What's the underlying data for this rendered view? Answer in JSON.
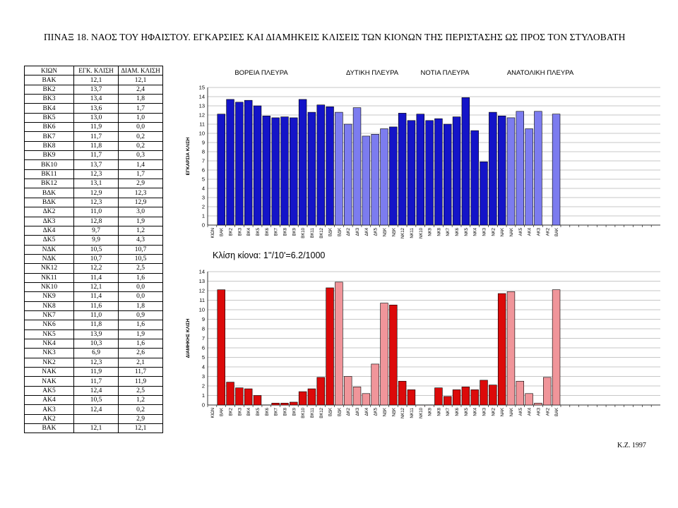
{
  "title": "ΠΙΝΑΞ 18. ΝΑΟΣ ΤΟΥ ΗΦΑΙΣΤΟΥ. ΕΓΚΑΡΣΙΕΣ ΚΑΙ ΔΙΑΜΗΚΕΙΣ ΚΛΙΣΕΙΣ ΤΩΝ ΚΙΟΝΩΝ ΤΗΣ ΠΕΡΙΣΤΑΣΗΣ ΩΣ ΠΡΟΣ ΤΟΝ ΣΤΥΛΟΒΑΤΗ",
  "credit": "K.Z. 1997",
  "table": {
    "headers": [
      "ΚΙΩΝ",
      "ΕΓΚ. ΚΛΙΣΗ",
      "ΔΙΑΜ. ΚΛΙΣΗ"
    ],
    "rows": [
      [
        "ΒΑΚ",
        "12,1",
        "12,1"
      ],
      [
        "ΒΚ2",
        "13,7",
        "2,4"
      ],
      [
        "ΒΚ3",
        "13,4",
        "1,8"
      ],
      [
        "ΒΚ4",
        "13,6",
        "1,7"
      ],
      [
        "ΒΚ5",
        "13,0",
        "1,0"
      ],
      [
        "ΒΚ6",
        "11,9",
        "0,0"
      ],
      [
        "ΒΚ7",
        "11,7",
        "0,2"
      ],
      [
        "ΒΚ8",
        "11,8",
        "0,2"
      ],
      [
        "ΒΚ9",
        "11,7",
        "0,3"
      ],
      [
        "ΒΚ10",
        "13,7",
        "1,4"
      ],
      [
        "ΒΚ11",
        "12,3",
        "1,7"
      ],
      [
        "ΒΚ12",
        "13,1",
        "2,9"
      ],
      [
        "ΒΔΚ",
        "12,9",
        "12,3"
      ],
      [
        "ΒΔΚ",
        "12,3",
        "12,9"
      ],
      [
        "ΔΚ2",
        "11,0",
        "3,0"
      ],
      [
        "ΔΚ3",
        "12,8",
        "1,9"
      ],
      [
        "ΔΚ4",
        "9,7",
        "1,2"
      ],
      [
        "ΔΚ5",
        "9,9",
        "4,3"
      ],
      [
        "ΝΔΚ",
        "10,5",
        "10,7"
      ],
      [
        "ΝΔΚ",
        "10,7",
        "10,5"
      ],
      [
        "ΝΚ12",
        "12,2",
        "2,5"
      ],
      [
        "ΝΚ11",
        "11,4",
        "1,6"
      ],
      [
        "ΝΚ10",
        "12,1",
        "0,0"
      ],
      [
        "ΝΚ9",
        "11,4",
        "0,0"
      ],
      [
        "ΝΚ8",
        "11,6",
        "1,8"
      ],
      [
        "ΝΚ7",
        "11,0",
        "0,9"
      ],
      [
        "ΝΚ6",
        "11,8",
        "1,6"
      ],
      [
        "ΝΚ5",
        "13,9",
        "1,9"
      ],
      [
        "ΝΚ4",
        "10,3",
        "1,6"
      ],
      [
        "ΝΚ3",
        "6,9",
        "2,6"
      ],
      [
        "ΝΚ2",
        "12,3",
        "2,1"
      ],
      [
        "ΝΑΚ",
        "11,9",
        "11,7"
      ],
      [
        "ΝΑΚ",
        "11,7",
        "11,9"
      ],
      [
        "ΑΚ5",
        "12,4",
        "2,5"
      ],
      [
        "ΑΚ4",
        "10,5",
        "1,2"
      ],
      [
        "ΑΚ3",
        "12,4",
        "0,2"
      ],
      [
        "ΑΚ2",
        "",
        "2,9"
      ],
      [
        "ΒΑΚ",
        "12,1",
        "12,1"
      ]
    ]
  },
  "chart_data": [
    {
      "type": "bar",
      "ylabel": "ΕΓΚΑΡΣΙΑ ΚΛΙΣΗ",
      "ylim": [
        0,
        15
      ],
      "yticks": [
        0,
        1,
        2,
        3,
        4,
        5,
        6,
        7,
        8,
        9,
        10,
        11,
        12,
        13,
        14,
        15
      ],
      "grid": true,
      "section_labels": [
        "ΒΟΡΕΙΑ ΠΛΕΥΡΑ",
        "ΔΥΤΙΚΗ ΠΛΕΥΡΑ",
        "ΝΟΤΙΑ ΠΛΕΥΡΑ",
        "ΑΝΑΤΟΛΙΚΗ ΠΛΕΥΡΑ"
      ],
      "annotation": "Κλίση κίονα: 1''/10'=6.2/1000",
      "categories": [
        "ΚΙΩΝ",
        "ΒΑΚ",
        "ΒΚ2",
        "ΒΚ3",
        "ΒΚ4",
        "ΒΚ5",
        "ΒΚ6",
        "ΒΚ7",
        "ΒΚ8",
        "ΒΚ9",
        "ΒΚ10",
        "ΒΚ11",
        "ΒΚ12",
        "ΒΔΚ",
        "ΒΔΚ",
        "ΔΚ2",
        "ΔΚ3",
        "ΔΚ4",
        "ΔΚ5",
        "ΝΔΚ",
        "ΝΔΚ",
        "ΝΚ12",
        "ΝΚ11",
        "ΝΚ10",
        "ΝΚ9",
        "ΝΚ8",
        "ΝΚ7",
        "ΝΚ6",
        "ΝΚ5",
        "ΝΚ4",
        "ΝΚ3",
        "ΝΚ2",
        "ΝΑΚ",
        "ΝΑΚ",
        "ΑΚ5",
        "ΑΚ4",
        "ΑΚ3",
        "ΑΚ2",
        "ΒΑΚ",
        "",
        "",
        "",
        "",
        "",
        "",
        "",
        "",
        "",
        "",
        ""
      ],
      "values": [
        null,
        12.1,
        13.7,
        13.4,
        13.6,
        13.0,
        11.9,
        11.7,
        11.8,
        11.7,
        13.7,
        12.3,
        13.1,
        12.9,
        12.3,
        11.0,
        12.8,
        9.7,
        9.9,
        10.5,
        10.7,
        12.2,
        11.4,
        12.1,
        11.4,
        11.6,
        11.0,
        11.8,
        13.9,
        10.3,
        6.9,
        12.3,
        11.9,
        11.7,
        12.4,
        10.5,
        12.4,
        null,
        12.1,
        null,
        null,
        null,
        null,
        null,
        null,
        null,
        null,
        null,
        null,
        null
      ],
      "shades": [
        "",
        "d",
        "d",
        "d",
        "d",
        "d",
        "d",
        "d",
        "d",
        "d",
        "d",
        "d",
        "d",
        "d",
        "l",
        "l",
        "l",
        "l",
        "l",
        "l",
        "d",
        "d",
        "d",
        "d",
        "d",
        "d",
        "d",
        "d",
        "d",
        "d",
        "d",
        "d",
        "d",
        "l",
        "l",
        "l",
        "l",
        "l",
        "l",
        "",
        "",
        "",
        "",
        "",
        "",
        "",
        "",
        "",
        "",
        ""
      ],
      "colors": {
        "dark": "#1414c8",
        "light": "#7c7cef",
        "grid": "#b4b4b4"
      }
    },
    {
      "type": "bar",
      "ylabel": "ΔΙΑΜΗΚΗΣ ΚΛΙΣΗ",
      "ylim": [
        0,
        14
      ],
      "yticks": [
        0,
        1,
        2,
        3,
        4,
        5,
        6,
        7,
        8,
        9,
        10,
        11,
        12,
        13,
        14
      ],
      "grid": true,
      "categories": [
        "ΚΙΩΝ",
        "ΒΑΚ",
        "ΒΚ2",
        "ΒΚ3",
        "ΒΚ4",
        "ΒΚ5",
        "ΒΚ6",
        "ΒΚ7",
        "ΒΚ8",
        "ΒΚ9",
        "ΒΚ10",
        "ΒΚ11",
        "ΒΚ12",
        "ΒΔΚ",
        "ΒΔΚ",
        "ΔΚ2",
        "ΔΚ3",
        "ΔΚ4",
        "ΔΚ5",
        "ΝΔΚ",
        "ΝΔΚ",
        "ΝΚ12",
        "ΝΚ11",
        "ΝΚ10",
        "ΝΚ9",
        "ΝΚ8",
        "ΝΚ7",
        "ΝΚ6",
        "ΝΚ5",
        "ΝΚ4",
        "ΝΚ3",
        "ΝΚ2",
        "ΝΑΚ",
        "ΝΑΚ",
        "ΑΚ5",
        "ΑΚ4",
        "ΑΚ3",
        "ΑΚ2",
        "ΒΑΚ",
        "",
        "",
        "",
        "",
        "",
        "",
        "",
        "",
        "",
        "",
        ""
      ],
      "values": [
        null,
        12.1,
        2.4,
        1.8,
        1.7,
        1.0,
        0.0,
        0.2,
        0.2,
        0.3,
        1.4,
        1.7,
        2.9,
        12.3,
        12.9,
        3.0,
        1.9,
        1.2,
        4.3,
        10.7,
        10.5,
        2.5,
        1.6,
        0.0,
        0.0,
        1.8,
        0.9,
        1.6,
        1.9,
        1.6,
        2.6,
        2.1,
        11.7,
        11.9,
        2.5,
        1.2,
        0.2,
        2.9,
        12.1,
        null,
        null,
        null,
        null,
        null,
        null,
        null,
        null,
        null,
        null,
        null
      ],
      "shades": [
        "",
        "d",
        "d",
        "d",
        "d",
        "d",
        "d",
        "d",
        "d",
        "d",
        "d",
        "d",
        "d",
        "d",
        "l",
        "l",
        "l",
        "l",
        "l",
        "l",
        "d",
        "d",
        "d",
        "d",
        "d",
        "d",
        "d",
        "d",
        "d",
        "d",
        "d",
        "d",
        "d",
        "l",
        "l",
        "l",
        "l",
        "l",
        "l",
        "",
        "",
        "",
        "",
        "",
        "",
        "",
        "",
        "",
        "",
        ""
      ],
      "colors": {
        "dark": "#dc0a0a",
        "light": "#f0959a",
        "grid": "#b4b4b4"
      }
    }
  ]
}
